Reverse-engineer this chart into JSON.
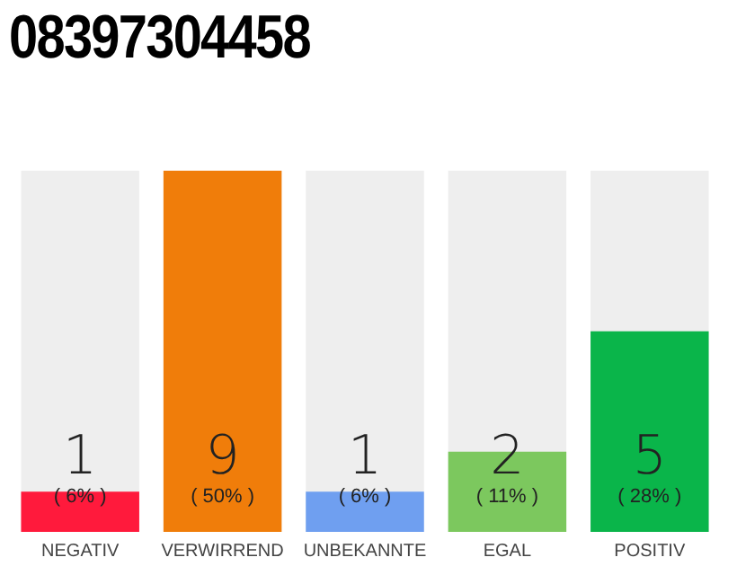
{
  "chart_data": {
    "type": "bar",
    "title": "08397304458",
    "categories": [
      "NEGATIV",
      "VERWIRREND",
      "UNBEKANNTE",
      "EGAL",
      "POSITIV"
    ],
    "values": [
      1,
      9,
      1,
      2,
      5
    ],
    "colors": [
      "#ff1a3c",
      "#f07d0a",
      "#6f9ff0",
      "#7cc85e",
      "#0ab54a"
    ],
    "value_labels": [
      "1\n( 6% )",
      "9\n( 50% )",
      "1\n( 6% )",
      "2\n( 11% )",
      "5\n( 28% )"
    ],
    "ylim": [
      0,
      9
    ],
    "tick_labels": "x",
    "grid": false
  }
}
